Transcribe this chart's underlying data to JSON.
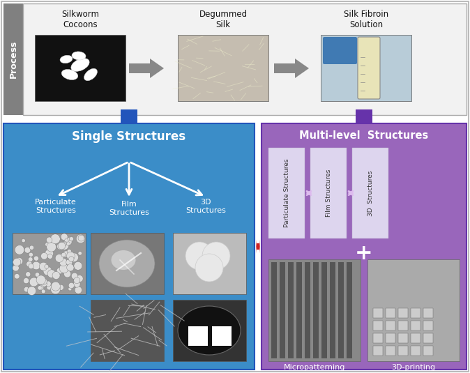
{
  "fig_width": 6.74,
  "fig_height": 5.35,
  "dpi": 100,
  "bg_color": "#ffffff",
  "top_panel": {
    "bg_color": "#f2f2f2",
    "border_color": "#aaaaaa",
    "label_text": "Process",
    "label_bg": "#808080",
    "label_color": "#ffffff",
    "steps": [
      "Silkworm\nCocoons",
      "Degummed\nSilk",
      "Silk Fibroin\nSolution"
    ],
    "arrow_color": "#808080"
  },
  "single_panel": {
    "bg_color": "#3b8dc8",
    "title": "Single Structures",
    "title_color": "#ffffff",
    "down_arrow_color": "#2255aa",
    "sub_labels": [
      "Particulate\nStructures",
      "Film\nStructures",
      "3D\nStructures"
    ],
    "sub_label_color": "#ffffff"
  },
  "multi_panel": {
    "bg_color": "#9966bb",
    "title": "Multi-level  Structures",
    "title_color": "#ffffff",
    "down_arrow_color": "#6633aa",
    "sub_labels": [
      "Particulate Structures",
      "Film Structures",
      "3D  Structures"
    ],
    "bar_color": "#ddd5ee",
    "bottom_labels": [
      "Micropatterning",
      "3D-printing"
    ],
    "bottom_label_color": "#ffffff"
  },
  "mid_arrow_color": "#cc2222"
}
